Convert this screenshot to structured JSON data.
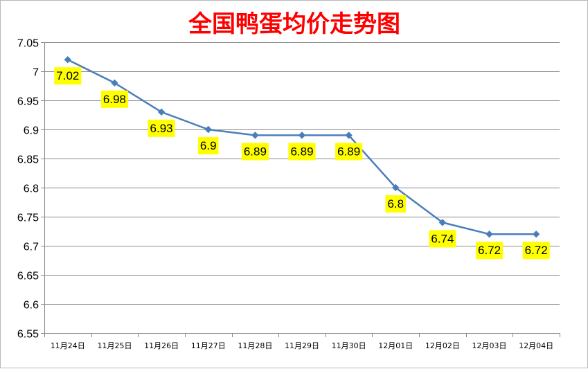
{
  "chart_data": {
    "type": "line",
    "title": "全国鸭蛋均价走势图",
    "categories": [
      "11月24日",
      "11月25日",
      "11月26日",
      "11月27日",
      "11月28日",
      "11月29日",
      "11月30日",
      "12月01日",
      "12月02日",
      "12月03日",
      "12月04日"
    ],
    "series": [
      {
        "values": [
          7.02,
          6.98,
          6.93,
          6.9,
          6.89,
          6.89,
          6.89,
          6.8,
          6.74,
          6.72,
          6.72
        ]
      }
    ],
    "data_labels": [
      "7.02",
      "6.98",
      "6.93",
      "6.9",
      "6.89",
      "6.89",
      "6.89",
      "6.8",
      "6.74",
      "6.72",
      "6.72"
    ],
    "ylim": [
      6.55,
      7.05
    ],
    "yticks": [
      "6.55",
      "6.6",
      "6.65",
      "6.7",
      "6.75",
      "6.8",
      "6.85",
      "6.9",
      "6.95",
      "7",
      "7.05"
    ],
    "ystep": 0.05,
    "xlabel": "",
    "ylabel": "",
    "grid": true,
    "legend": "none",
    "colors": {
      "line": "#4a7ebb",
      "label_bg": "#ffff00",
      "title": "#ff0000",
      "grid": "#878787"
    }
  }
}
